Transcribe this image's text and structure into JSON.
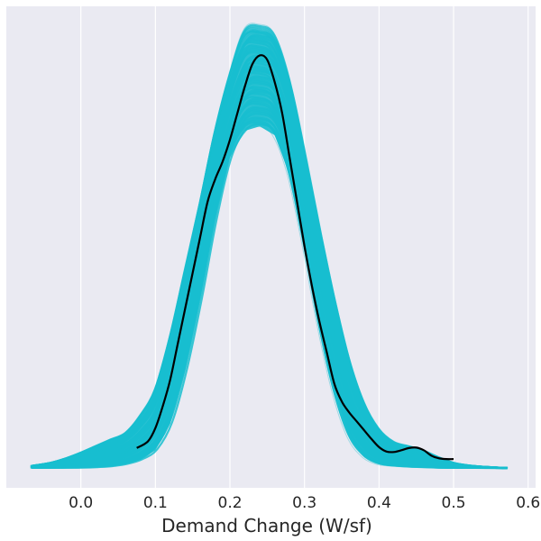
{
  "chart_data": {
    "type": "line",
    "title": "",
    "xlabel": "Demand Change (W/sf)",
    "ylabel": "",
    "xlim": [
      -0.1,
      0.61
    ],
    "ylim": [
      0,
      1.0
    ],
    "x_ticks": [
      0.0,
      0.1,
      0.2,
      0.3,
      0.4,
      0.5,
      0.6
    ],
    "x_tick_labels": [
      "0.0",
      "0.1",
      "0.2",
      "0.3",
      "0.4",
      "0.5",
      "0.6"
    ],
    "grid": true,
    "legend": "none",
    "colors": {
      "background": "#eaeaf2",
      "grid": "#ffffff",
      "ensemble": "#17becf",
      "mean": "#000000",
      "text": "#262626"
    },
    "series": [
      {
        "role": "ensemble",
        "x": [
          -0.065,
          -0.04,
          -0.02,
          0.0,
          0.02,
          0.04,
          0.06,
          0.08,
          0.1,
          0.12,
          0.14,
          0.16,
          0.18,
          0.2,
          0.22,
          0.24,
          0.26,
          0.28,
          0.3,
          0.32,
          0.34,
          0.36,
          0.38,
          0.4,
          0.42,
          0.44,
          0.46,
          0.48,
          0.5,
          0.52,
          0.54,
          0.57
        ],
        "y_upper": [
          0.005,
          0.012,
          0.022,
          0.035,
          0.05,
          0.065,
          0.08,
          0.12,
          0.18,
          0.3,
          0.45,
          0.6,
          0.76,
          0.89,
          0.99,
          1.0,
          0.98,
          0.88,
          0.72,
          0.55,
          0.39,
          0.25,
          0.15,
          0.09,
          0.06,
          0.05,
          0.04,
          0.025,
          0.012,
          0.006,
          0.003,
          0.0
        ],
        "y_lower": [
          0.0,
          0.0,
          0.0,
          0.0,
          0.001,
          0.003,
          0.008,
          0.018,
          0.04,
          0.1,
          0.22,
          0.38,
          0.56,
          0.7,
          0.76,
          0.77,
          0.75,
          0.66,
          0.5,
          0.32,
          0.17,
          0.07,
          0.025,
          0.008,
          0.004,
          0.002,
          0.001,
          0.0,
          0.0,
          0.0,
          0.0,
          0.0
        ]
      },
      {
        "role": "mean",
        "x": [
          0.075,
          0.09,
          0.1,
          0.11,
          0.12,
          0.13,
          0.14,
          0.15,
          0.16,
          0.17,
          0.18,
          0.19,
          0.2,
          0.21,
          0.22,
          0.23,
          0.24,
          0.25,
          0.26,
          0.27,
          0.28,
          0.29,
          0.3,
          0.31,
          0.32,
          0.33,
          0.34,
          0.35,
          0.36,
          0.37,
          0.38,
          0.39,
          0.4,
          0.41,
          0.42,
          0.43,
          0.44,
          0.45,
          0.46,
          0.47,
          0.48,
          0.49,
          0.5
        ],
        "y": [
          0.045,
          0.06,
          0.09,
          0.14,
          0.2,
          0.28,
          0.36,
          0.44,
          0.52,
          0.6,
          0.65,
          0.69,
          0.74,
          0.8,
          0.86,
          0.91,
          0.93,
          0.92,
          0.87,
          0.8,
          0.7,
          0.6,
          0.5,
          0.41,
          0.33,
          0.26,
          0.19,
          0.15,
          0.125,
          0.105,
          0.085,
          0.065,
          0.047,
          0.037,
          0.036,
          0.04,
          0.045,
          0.046,
          0.04,
          0.028,
          0.022,
          0.02,
          0.02
        ]
      }
    ]
  }
}
